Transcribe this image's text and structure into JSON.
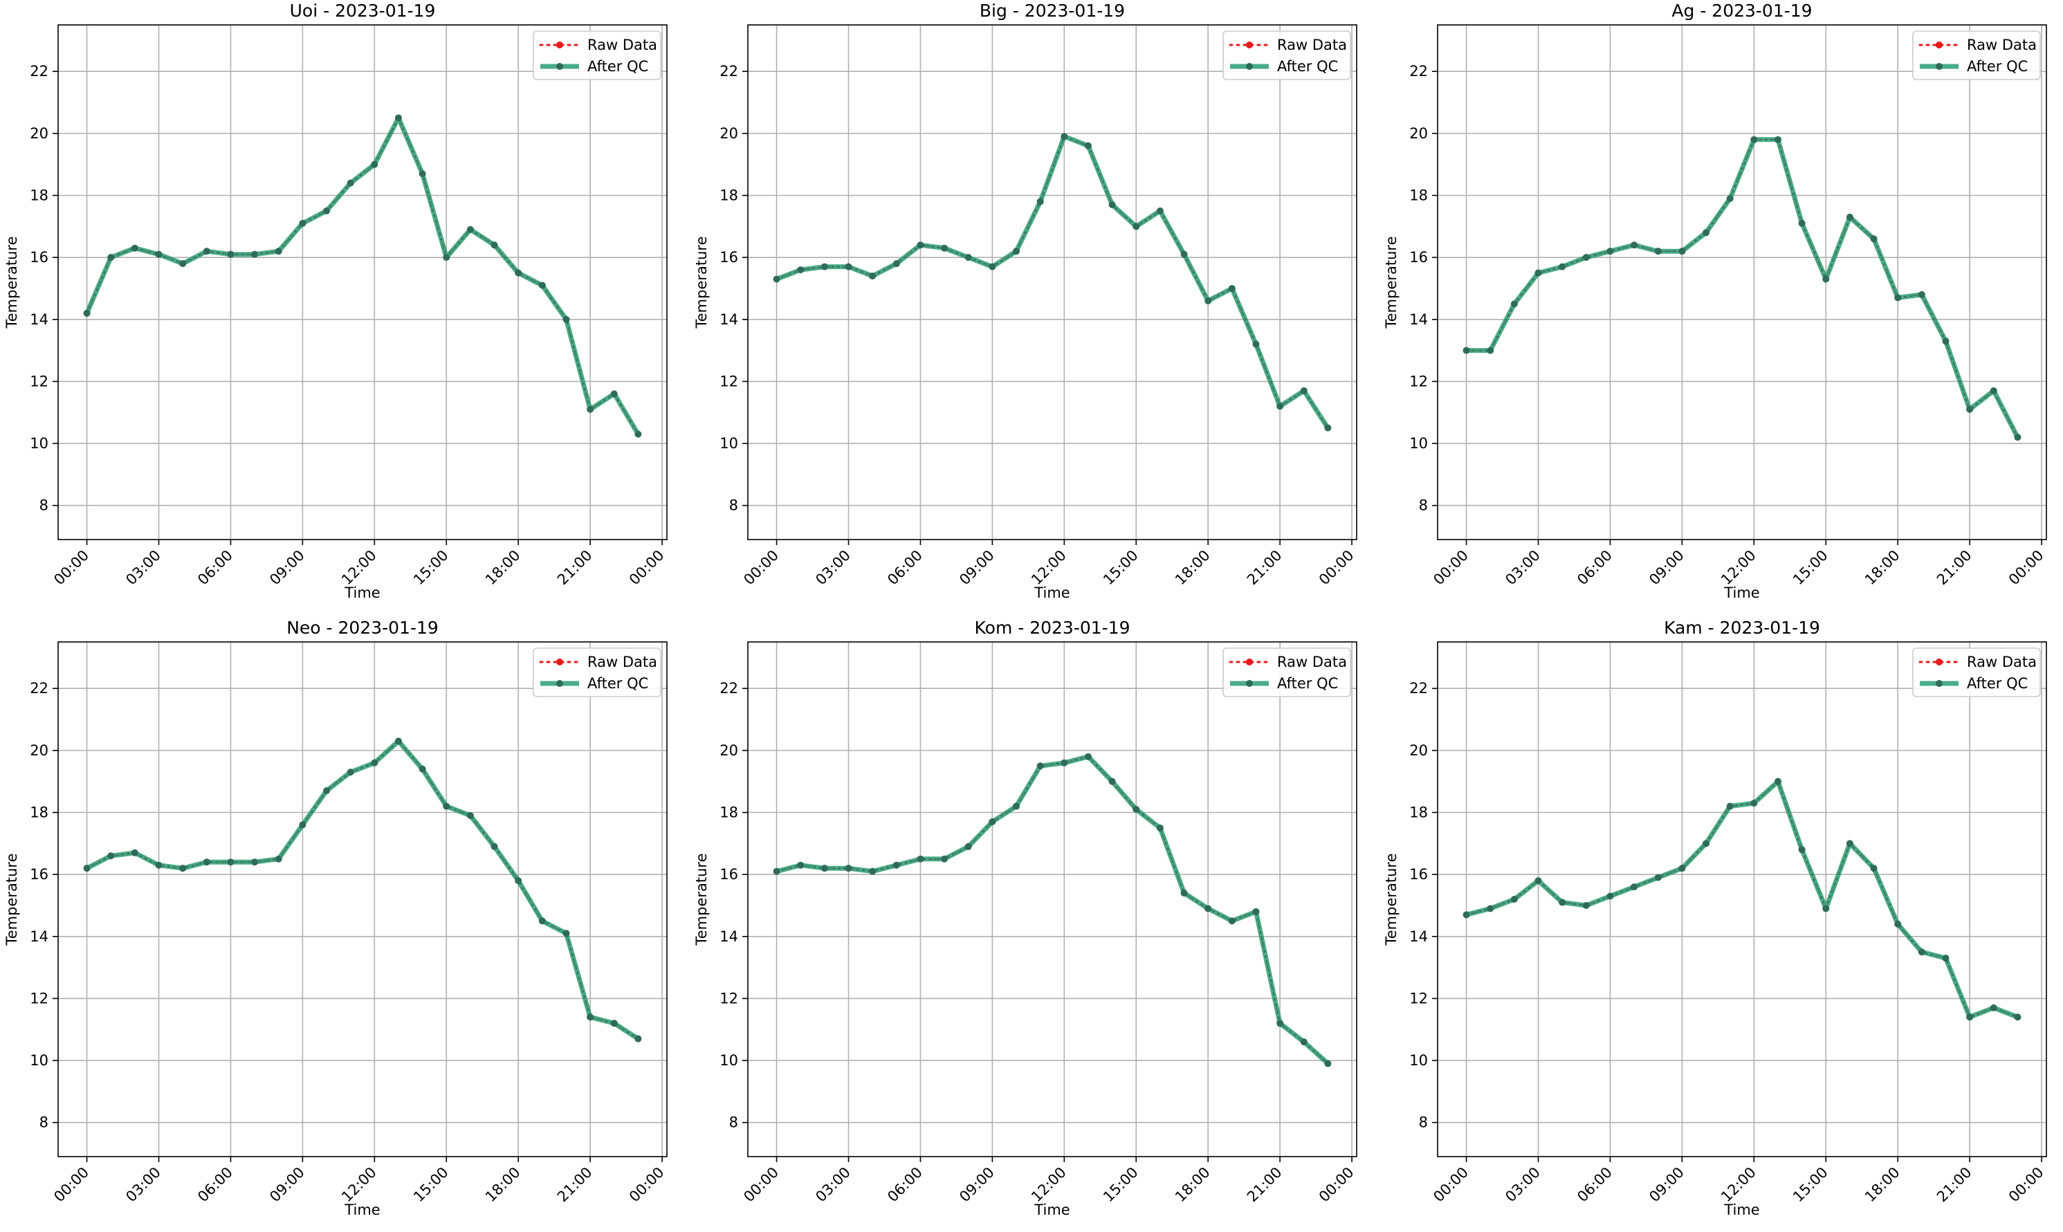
{
  "legend_labels": {
    "raw": "Raw Data",
    "qc": "After QC"
  },
  "colors": {
    "raw": "#e41a1c",
    "qc": "#2a9d74",
    "marker": "#2f6b5a",
    "grid": "#b0b0b0"
  },
  "chart_data": [
    {
      "type": "line",
      "title": "Uoi - 2023-01-19",
      "xlabel": "Time",
      "ylabel": "Temperature",
      "x_hours": [
        0,
        1,
        2,
        3,
        4,
        5,
        6,
        7,
        8,
        9,
        10,
        11,
        12,
        13,
        14,
        15,
        16,
        17,
        18,
        19,
        20,
        21,
        22,
        23
      ],
      "xlim_hours": [
        -1.2,
        24.2
      ],
      "ylim": [
        6.9,
        23.5
      ],
      "xticks_hours": [
        0,
        3,
        6,
        9,
        12,
        15,
        18,
        21,
        24
      ],
      "xtick_labels": [
        "00:00",
        "03:00",
        "06:00",
        "09:00",
        "12:00",
        "15:00",
        "18:00",
        "21:00",
        "00:00"
      ],
      "yticks": [
        8,
        10,
        12,
        14,
        16,
        18,
        20,
        22
      ],
      "ytick_labels": [
        "8",
        "10",
        "12",
        "14",
        "16",
        "18",
        "20",
        "22"
      ],
      "grid": true,
      "legend_position": "upper right",
      "series": [
        {
          "name": "Raw Data",
          "style": "dotted",
          "values": [
            14.2,
            16.0,
            16.3,
            16.1,
            15.8,
            16.2,
            16.1,
            16.1,
            16.2,
            17.1,
            17.5,
            18.4,
            19.0,
            20.5,
            18.7,
            16.0,
            16.9,
            16.4,
            15.5,
            15.1,
            14.0,
            11.1,
            11.6,
            10.3
          ]
        },
        {
          "name": "After QC",
          "style": "solid",
          "values": [
            14.2,
            16.0,
            16.3,
            16.1,
            15.8,
            16.2,
            16.1,
            16.1,
            16.2,
            17.1,
            17.5,
            18.4,
            19.0,
            20.5,
            18.7,
            16.0,
            16.9,
            16.4,
            15.5,
            15.1,
            14.0,
            11.1,
            11.6,
            10.3
          ]
        }
      ]
    },
    {
      "type": "line",
      "title": "Big - 2023-01-19",
      "xlabel": "Time",
      "ylabel": "Temperature",
      "x_hours": [
        0,
        1,
        2,
        3,
        4,
        5,
        6,
        7,
        8,
        9,
        10,
        11,
        12,
        13,
        14,
        15,
        16,
        17,
        18,
        19,
        20,
        21,
        22,
        23
      ],
      "xlim_hours": [
        -1.2,
        24.2
      ],
      "ylim": [
        6.9,
        23.5
      ],
      "xticks_hours": [
        0,
        3,
        6,
        9,
        12,
        15,
        18,
        21,
        24
      ],
      "xtick_labels": [
        "00:00",
        "03:00",
        "06:00",
        "09:00",
        "12:00",
        "15:00",
        "18:00",
        "21:00",
        "00:00"
      ],
      "yticks": [
        8,
        10,
        12,
        14,
        16,
        18,
        20,
        22
      ],
      "ytick_labels": [
        "8",
        "10",
        "12",
        "14",
        "16",
        "18",
        "20",
        "22"
      ],
      "grid": true,
      "legend_position": "upper right",
      "series": [
        {
          "name": "Raw Data",
          "style": "dotted",
          "values": [
            15.3,
            15.6,
            15.7,
            15.7,
            15.4,
            15.8,
            16.4,
            16.3,
            16.0,
            15.7,
            16.2,
            17.8,
            19.9,
            19.6,
            17.7,
            17.0,
            17.5,
            16.1,
            14.6,
            15.0,
            13.2,
            11.2,
            11.7,
            10.5
          ]
        },
        {
          "name": "After QC",
          "style": "solid",
          "values": [
            15.3,
            15.6,
            15.7,
            15.7,
            15.4,
            15.8,
            16.4,
            16.3,
            16.0,
            15.7,
            16.2,
            17.8,
            19.9,
            19.6,
            17.7,
            17.0,
            17.5,
            16.1,
            14.6,
            15.0,
            13.2,
            11.2,
            11.7,
            10.5
          ]
        }
      ]
    },
    {
      "type": "line",
      "title": "Ag - 2023-01-19",
      "xlabel": "Time",
      "ylabel": "Temperature",
      "x_hours": [
        0,
        1,
        2,
        3,
        4,
        5,
        6,
        7,
        8,
        9,
        10,
        11,
        12,
        13,
        14,
        15,
        16,
        17,
        18,
        19,
        20,
        21,
        22,
        23
      ],
      "xlim_hours": [
        -1.2,
        24.2
      ],
      "ylim": [
        6.9,
        23.5
      ],
      "xticks_hours": [
        0,
        3,
        6,
        9,
        12,
        15,
        18,
        21,
        24
      ],
      "xtick_labels": [
        "00:00",
        "03:00",
        "06:00",
        "09:00",
        "12:00",
        "15:00",
        "18:00",
        "21:00",
        "00:00"
      ],
      "yticks": [
        8,
        10,
        12,
        14,
        16,
        18,
        20,
        22
      ],
      "ytick_labels": [
        "8",
        "10",
        "12",
        "14",
        "16",
        "18",
        "20",
        "22"
      ],
      "grid": true,
      "legend_position": "upper right",
      "series": [
        {
          "name": "Raw Data",
          "style": "dotted",
          "values": [
            13.0,
            13.0,
            14.5,
            15.5,
            15.7,
            16.0,
            16.2,
            16.4,
            16.2,
            16.2,
            16.8,
            17.9,
            19.8,
            19.8,
            17.1,
            15.3,
            17.3,
            16.6,
            14.7,
            14.8,
            13.3,
            11.1,
            11.7,
            10.2
          ]
        },
        {
          "name": "After QC",
          "style": "solid",
          "values": [
            13.0,
            13.0,
            14.5,
            15.5,
            15.7,
            16.0,
            16.2,
            16.4,
            16.2,
            16.2,
            16.8,
            17.9,
            19.8,
            19.8,
            17.1,
            15.3,
            17.3,
            16.6,
            14.7,
            14.8,
            13.3,
            11.1,
            11.7,
            10.2
          ]
        }
      ]
    },
    {
      "type": "line",
      "title": "Neo - 2023-01-19",
      "xlabel": "Time",
      "ylabel": "Temperature",
      "x_hours": [
        0,
        1,
        2,
        3,
        4,
        5,
        6,
        7,
        8,
        9,
        10,
        11,
        12,
        13,
        14,
        15,
        16,
        17,
        18,
        19,
        20,
        21,
        22,
        23
      ],
      "xlim_hours": [
        -1.2,
        24.2
      ],
      "ylim": [
        6.9,
        23.5
      ],
      "xticks_hours": [
        0,
        3,
        6,
        9,
        12,
        15,
        18,
        21,
        24
      ],
      "xtick_labels": [
        "00:00",
        "03:00",
        "06:00",
        "09:00",
        "12:00",
        "15:00",
        "18:00",
        "21:00",
        "00:00"
      ],
      "yticks": [
        8,
        10,
        12,
        14,
        16,
        18,
        20,
        22
      ],
      "ytick_labels": [
        "8",
        "10",
        "12",
        "14",
        "16",
        "18",
        "20",
        "22"
      ],
      "grid": true,
      "legend_position": "upper right",
      "series": [
        {
          "name": "Raw Data",
          "style": "dotted",
          "values": [
            16.2,
            16.6,
            16.7,
            16.3,
            16.2,
            16.4,
            16.4,
            16.4,
            16.5,
            17.6,
            18.7,
            19.3,
            19.6,
            20.3,
            19.4,
            18.2,
            17.9,
            16.9,
            15.8,
            14.5,
            14.1,
            11.4,
            11.2,
            10.7
          ]
        },
        {
          "name": "After QC",
          "style": "solid",
          "values": [
            16.2,
            16.6,
            16.7,
            16.3,
            16.2,
            16.4,
            16.4,
            16.4,
            16.5,
            17.6,
            18.7,
            19.3,
            19.6,
            20.3,
            19.4,
            18.2,
            17.9,
            16.9,
            15.8,
            14.5,
            14.1,
            11.4,
            11.2,
            10.7
          ]
        }
      ]
    },
    {
      "type": "line",
      "title": "Kom - 2023-01-19",
      "xlabel": "Time",
      "ylabel": "Temperature",
      "x_hours": [
        0,
        1,
        2,
        3,
        4,
        5,
        6,
        7,
        8,
        9,
        10,
        11,
        12,
        13,
        14,
        15,
        16,
        17,
        18,
        19,
        20,
        21,
        22,
        23
      ],
      "xlim_hours": [
        -1.2,
        24.2
      ],
      "ylim": [
        6.9,
        23.5
      ],
      "xticks_hours": [
        0,
        3,
        6,
        9,
        12,
        15,
        18,
        21,
        24
      ],
      "xtick_labels": [
        "00:00",
        "03:00",
        "06:00",
        "09:00",
        "12:00",
        "15:00",
        "18:00",
        "21:00",
        "00:00"
      ],
      "yticks": [
        8,
        10,
        12,
        14,
        16,
        18,
        20,
        22
      ],
      "ytick_labels": [
        "8",
        "10",
        "12",
        "14",
        "16",
        "18",
        "20",
        "22"
      ],
      "grid": true,
      "legend_position": "upper right",
      "series": [
        {
          "name": "Raw Data",
          "style": "dotted",
          "values": [
            16.1,
            16.3,
            16.2,
            16.2,
            16.1,
            16.3,
            16.5,
            16.5,
            16.9,
            17.7,
            18.2,
            19.5,
            19.6,
            19.8,
            19.0,
            18.1,
            17.5,
            15.4,
            14.9,
            14.5,
            14.8,
            11.2,
            10.6,
            9.9
          ]
        },
        {
          "name": "After QC",
          "style": "solid",
          "values": [
            16.1,
            16.3,
            16.2,
            16.2,
            16.1,
            16.3,
            16.5,
            16.5,
            16.9,
            17.7,
            18.2,
            19.5,
            19.6,
            19.8,
            19.0,
            18.1,
            17.5,
            15.4,
            14.9,
            14.5,
            14.8,
            11.2,
            10.6,
            9.9
          ]
        }
      ]
    },
    {
      "type": "line",
      "title": "Kam - 2023-01-19",
      "xlabel": "Time",
      "ylabel": "Temperature",
      "x_hours": [
        0,
        1,
        2,
        3,
        4,
        5,
        6,
        7,
        8,
        9,
        10,
        11,
        12,
        13,
        14,
        15,
        16,
        17,
        18,
        19,
        20,
        21,
        22,
        23
      ],
      "xlim_hours": [
        -1.2,
        24.2
      ],
      "ylim": [
        6.9,
        23.5
      ],
      "xticks_hours": [
        0,
        3,
        6,
        9,
        12,
        15,
        18,
        21,
        24
      ],
      "xtick_labels": [
        "00:00",
        "03:00",
        "06:00",
        "09:00",
        "12:00",
        "15:00",
        "18:00",
        "21:00",
        "00:00"
      ],
      "yticks": [
        8,
        10,
        12,
        14,
        16,
        18,
        20,
        22
      ],
      "ytick_labels": [
        "8",
        "10",
        "12",
        "14",
        "16",
        "18",
        "20",
        "22"
      ],
      "grid": true,
      "legend_position": "upper right",
      "series": [
        {
          "name": "Raw Data",
          "style": "dotted",
          "values": [
            14.7,
            14.9,
            15.2,
            15.8,
            15.1,
            15.0,
            15.3,
            15.6,
            15.9,
            16.2,
            17.0,
            18.2,
            18.3,
            19.0,
            16.8,
            14.9,
            17.0,
            16.2,
            14.4,
            13.5,
            13.3,
            11.4,
            11.7,
            11.4
          ]
        },
        {
          "name": "After QC",
          "style": "solid",
          "values": [
            14.7,
            14.9,
            15.2,
            15.8,
            15.1,
            15.0,
            15.3,
            15.6,
            15.9,
            16.2,
            17.0,
            18.2,
            18.3,
            19.0,
            16.8,
            14.9,
            17.0,
            16.2,
            14.4,
            13.5,
            13.3,
            11.4,
            11.7,
            11.4
          ]
        }
      ]
    }
  ]
}
